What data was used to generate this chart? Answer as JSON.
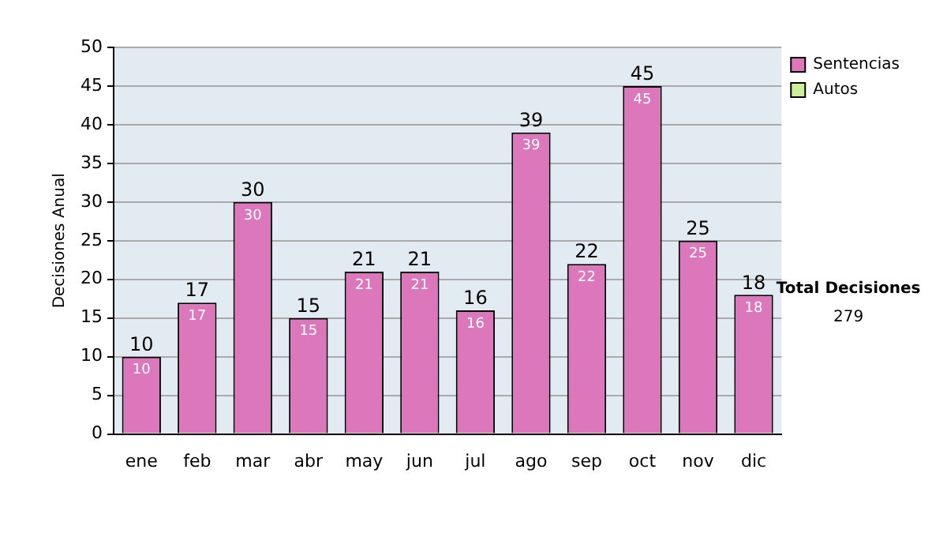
{
  "chart_data": {
    "type": "bar",
    "ylabel": "Decisiones Anual",
    "categories": [
      "ene",
      "feb",
      "mar",
      "abr",
      "may",
      "jun",
      "jul",
      "ago",
      "sep",
      "oct",
      "nov",
      "dic"
    ],
    "series": [
      {
        "name": "Sentencias",
        "color": "#dd77bb",
        "values": [
          10,
          17,
          30,
          15,
          21,
          21,
          16,
          39,
          22,
          45,
          25,
          18
        ]
      },
      {
        "name": "Autos",
        "color": "#ccee99",
        "values": [
          null,
          null,
          null,
          null,
          null,
          null,
          null,
          null,
          null,
          null,
          null,
          null
        ]
      }
    ],
    "stacked": true,
    "ylim": [
      0,
      50
    ],
    "yticks": [
      0,
      5,
      10,
      15,
      20,
      25,
      30,
      35,
      40,
      45,
      50
    ],
    "grid": "y",
    "legend": "right",
    "data_labels": true,
    "totals": [
      "10",
      "17",
      "30",
      "15",
      "21",
      "21",
      "16",
      "39",
      "22",
      "45",
      "25",
      "18"
    ],
    "annotations": [
      "Total Decisiones",
      "279"
    ]
  }
}
